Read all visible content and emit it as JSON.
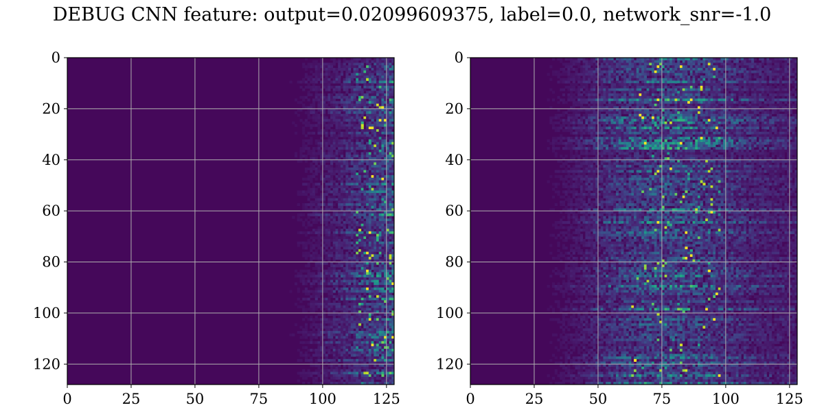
{
  "figure": {
    "title": "DEBUG CNN feature: output=0.02099609375, label=0.0, network_snr=-1.0"
  },
  "chart_data": [
    {
      "type": "heatmap",
      "colormap": "viridis",
      "rows": 128,
      "cols": 128,
      "value_range": [
        0,
        1
      ],
      "xlim": [
        0,
        128
      ],
      "ylim": [
        128,
        0
      ],
      "xticks": [
        0,
        25,
        50,
        75,
        100,
        125
      ],
      "yticks": [
        0,
        20,
        40,
        60,
        80,
        100,
        120
      ],
      "xtick_labels": [
        "0",
        "25",
        "50",
        "75",
        "100",
        "125"
      ],
      "ytick_labels": [
        "0",
        "20",
        "40",
        "60",
        "80",
        "100",
        "120"
      ],
      "grid": true,
      "grid_color": "#b0b0b0",
      "activity_profile": "low in columns 0-80, activity rising from ~85 to 127, strongest near columns 115-125 (values up to 1.0)",
      "background_value": 0.02
    },
    {
      "type": "heatmap",
      "colormap": "viridis",
      "rows": 128,
      "cols": 128,
      "value_range": [
        0,
        1
      ],
      "xlim": [
        0,
        128
      ],
      "ylim": [
        128,
        0
      ],
      "xticks": [
        0,
        25,
        50,
        75,
        100,
        125
      ],
      "yticks": [
        0,
        20,
        40,
        60,
        80,
        100,
        120
      ],
      "xtick_labels": [
        "0",
        "25",
        "50",
        "75",
        "100",
        "125"
      ],
      "ytick_labels": [
        "0",
        "20",
        "40",
        "60",
        "80",
        "100",
        "120"
      ],
      "grid": true,
      "grid_color": "#b0b0b0",
      "activity_profile": "low in columns 0-25, horizontal streaks from ~30 to 127, strongest near columns 65-95 (values up to 1.0)",
      "background_value": 0.02
    }
  ],
  "colors": {
    "viridis_low": "#440154",
    "viridis_mid": "#21918c",
    "viridis_high": "#fde725",
    "background": "#ffffff"
  }
}
